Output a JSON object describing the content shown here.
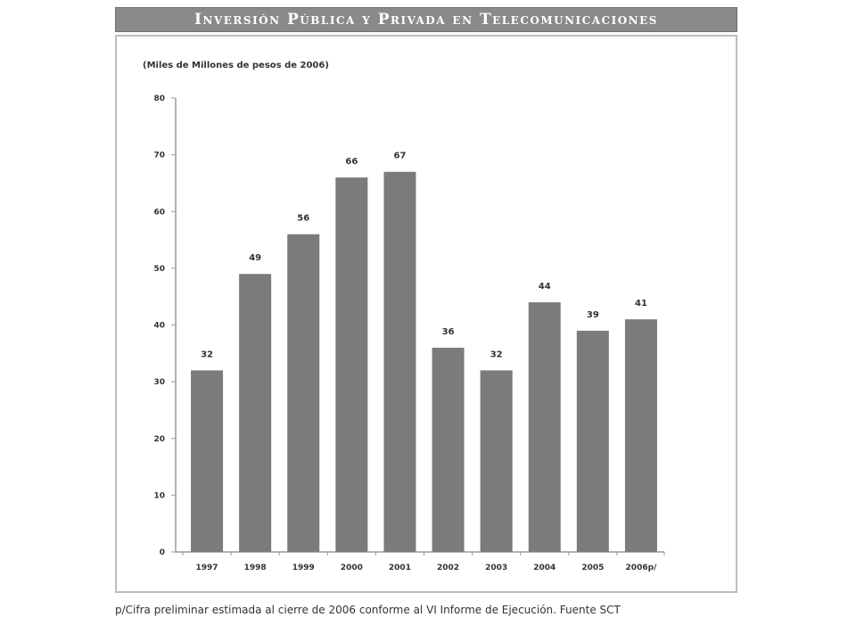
{
  "title": "Inversión Pública y Privada en Telecomunicaciones",
  "footnote": "p/Cifra preliminar estimada al cierre de 2006 conforme al VI Informe de Ejecución. Fuente SCT",
  "colors": {
    "bar": "#7b7b7b",
    "title_bar": "#8a8a8a",
    "text": "#333333"
  },
  "chart_data": {
    "type": "bar",
    "ylabel": "(Miles de Millones de pesos de 2006)",
    "categories": [
      "1997",
      "1998",
      "1999",
      "2000",
      "2001",
      "2002",
      "2003",
      "2004",
      "2005",
      "2006p/"
    ],
    "values": [
      32,
      49,
      56,
      66,
      67,
      36,
      32,
      44,
      39,
      41
    ],
    "value_labels": [
      "32",
      "49",
      "56",
      "66",
      "67",
      "36",
      "32",
      "44",
      "39",
      "41"
    ],
    "ylim": [
      0,
      80
    ],
    "yticks": [
      0,
      10,
      20,
      30,
      40,
      50,
      60,
      70,
      80
    ],
    "grid": false,
    "legend": "none"
  }
}
